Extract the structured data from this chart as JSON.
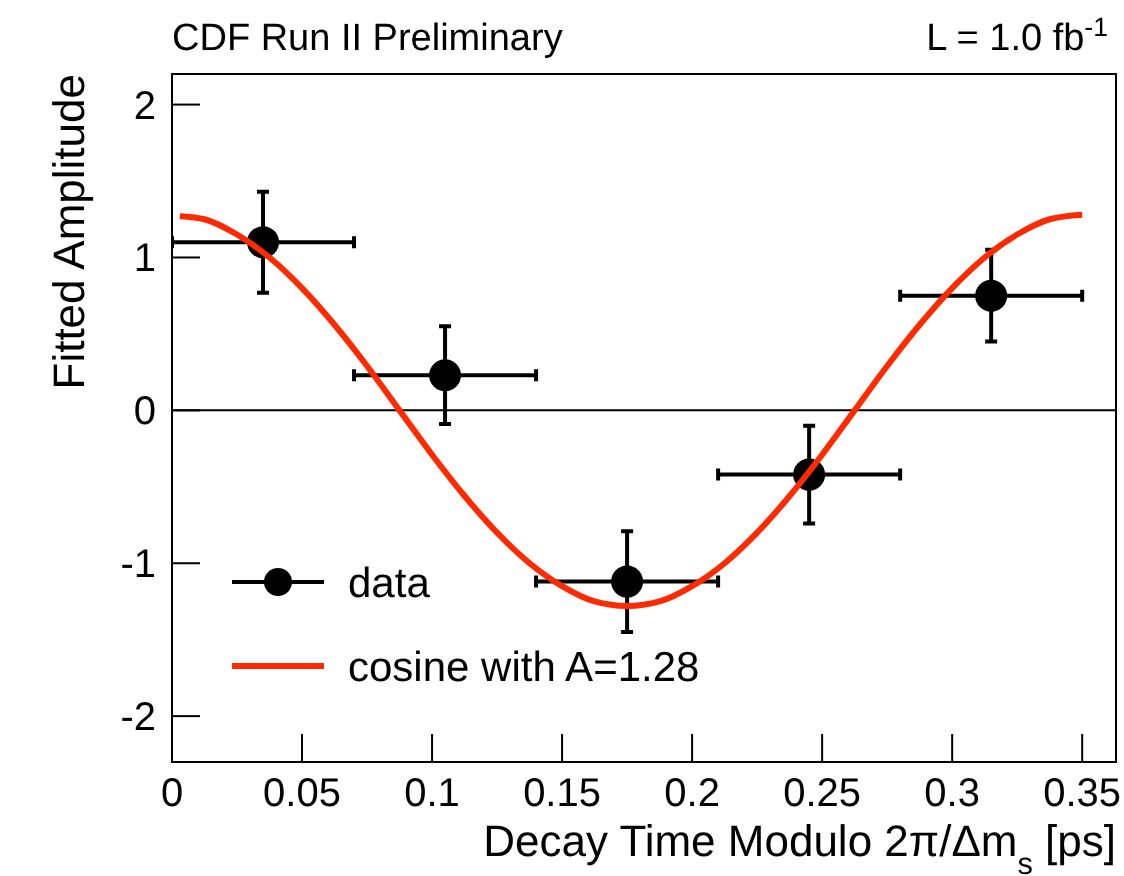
{
  "chart_data": {
    "type": "scatter",
    "title": "CDF Run II Preliminary",
    "annotations": [
      "L = 1.0 fb$^{-1}$"
    ],
    "xlabel": "Decay Time Modulo 2π/Δm$_{s}$ [ps]",
    "ylabel": "Fitted Amplitude",
    "xlim": [
      0,
      0.363
    ],
    "ylim": [
      -2.3,
      2.2
    ],
    "xticks": [
      0,
      0.05,
      0.1,
      0.15,
      0.2,
      0.25,
      0.3,
      0.35
    ],
    "yticks": [
      -2,
      -1,
      0,
      1,
      2
    ],
    "ref_lines": [
      {
        "axis": "y",
        "value": 0,
        "color": "#000000"
      }
    ],
    "legend": "bottom left",
    "grid": false,
    "series": [
      {
        "name": "data",
        "color": "#000000",
        "marker": "circle",
        "x": [
          0.035,
          0.105,
          0.175,
          0.245,
          0.315
        ],
        "values": [
          1.1,
          0.23,
          -1.12,
          -0.42,
          0.75
        ],
        "errors": [
          0.33,
          0.32,
          0.33,
          0.32,
          0.3
        ],
        "xerrors": [
          0.035,
          0.035,
          0.035,
          0.035,
          0.035
        ]
      },
      {
        "name": "cosine with A=1.28",
        "type": "line",
        "color": "#ff2a00",
        "line_style": "solid",
        "x": [
          0.003,
          0.0125,
          0.025,
          0.0375,
          0.05,
          0.0625,
          0.075,
          0.0875,
          0.1,
          0.1125,
          0.125,
          0.1375,
          0.15,
          0.1625,
          0.175,
          0.1875,
          0.2,
          0.2125,
          0.225,
          0.2375,
          0.25,
          0.2625,
          0.275,
          0.2875,
          0.3,
          0.3125,
          0.325,
          0.3375,
          0.35
        ],
        "values": [
          1.27,
          1.25,
          1.15,
          1.0,
          0.8,
          0.56,
          0.29,
          0,
          -0.29,
          -0.56,
          -0.8,
          -1.0,
          -1.15,
          -1.25,
          -1.28,
          -1.25,
          -1.15,
          -1.0,
          -0.8,
          -0.56,
          -0.29,
          0,
          0.29,
          0.56,
          0.8,
          1.0,
          1.15,
          1.25,
          1.28
        ]
      }
    ]
  }
}
